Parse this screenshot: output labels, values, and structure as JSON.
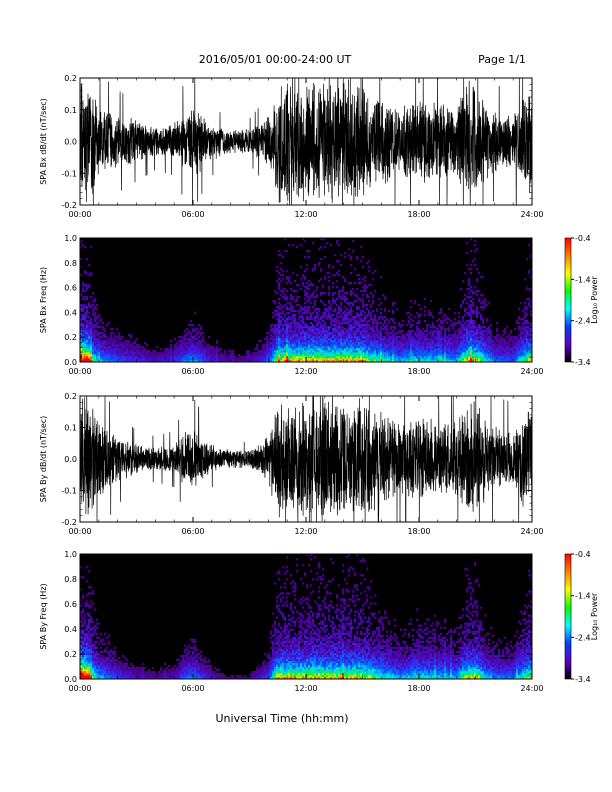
{
  "header": {
    "date_range": "2016/05/01   00:00-24:00 UT",
    "page": "Page 1/1"
  },
  "footer": {
    "x_axis_title": "Universal Time (hh:mm)"
  },
  "colorbar": {
    "label": "Log₁₀ Power",
    "ticks": [
      "-0.4",
      "-1.4",
      "-2.4",
      "-3.4"
    ],
    "colors": [
      "#ff0000",
      "#ff8000",
      "#ffff00",
      "#00ff00",
      "#00ffff",
      "#0040ff",
      "#6000c0",
      "#000000"
    ]
  },
  "chart_data": [
    {
      "type": "line",
      "id": "bx-waveform",
      "ylabel": "SPA Bx dB/dt (nT/sec)",
      "ylim": [
        -0.2,
        0.2
      ],
      "yticks": [
        "0.2",
        "0.1",
        "0.0",
        "-0.1",
        "-0.2"
      ],
      "xlim": [
        0,
        24
      ],
      "xticks": [
        "00:00",
        "06:00",
        "12:00",
        "18:00",
        "24:00"
      ],
      "envelope_hours": [
        0,
        0.5,
        1,
        2,
        3,
        4,
        5,
        5.5,
        6,
        6.5,
        7,
        8,
        9,
        10,
        10.5,
        11,
        12,
        13,
        14,
        15,
        16,
        17,
        18,
        19,
        20,
        20.5,
        21,
        21.5,
        22,
        23,
        24
      ],
      "envelope_amplitude": [
        0.21,
        0.21,
        0.12,
        0.09,
        0.07,
        0.05,
        0.06,
        0.1,
        0.12,
        0.09,
        0.06,
        0.04,
        0.04,
        0.08,
        0.2,
        0.21,
        0.21,
        0.21,
        0.21,
        0.21,
        0.15,
        0.12,
        0.14,
        0.13,
        0.12,
        0.2,
        0.21,
        0.15,
        0.1,
        0.09,
        0.21
      ]
    },
    {
      "type": "heatmap",
      "id": "bx-spectrogram",
      "ylabel": "SPA Bx Freq (Hz)",
      "ylim": [
        0,
        1
      ],
      "yticks": [
        "1.0",
        "0.8",
        "0.6",
        "0.4",
        "0.2",
        "0.0"
      ],
      "xlim": [
        0,
        24
      ],
      "xticks": [
        "00:00",
        "06:00",
        "12:00",
        "18:00",
        "24:00"
      ],
      "zlim": [
        -3.4,
        -0.4
      ]
    },
    {
      "type": "line",
      "id": "by-waveform",
      "ylabel": "SPA By dB/dt (nT/sec)",
      "ylim": [
        -0.2,
        0.2
      ],
      "yticks": [
        "0.2",
        "0.1",
        "0.0",
        "-0.1",
        "-0.2"
      ],
      "xlim": [
        0,
        24
      ],
      "xticks": [
        "00:00",
        "06:00",
        "12:00",
        "18:00",
        "24:00"
      ],
      "envelope_hours": [
        0,
        0.5,
        1,
        2,
        3,
        4,
        5,
        5.5,
        6,
        6.5,
        7,
        8,
        9,
        10,
        10.5,
        11,
        12,
        13,
        14,
        15,
        16,
        17,
        18,
        19,
        20,
        20.5,
        21,
        21.5,
        22,
        23,
        24
      ],
      "envelope_amplitude": [
        0.21,
        0.21,
        0.13,
        0.08,
        0.05,
        0.04,
        0.05,
        0.09,
        0.11,
        0.08,
        0.05,
        0.03,
        0.03,
        0.08,
        0.21,
        0.21,
        0.21,
        0.21,
        0.21,
        0.21,
        0.16,
        0.12,
        0.15,
        0.13,
        0.12,
        0.2,
        0.21,
        0.14,
        0.11,
        0.1,
        0.21
      ]
    },
    {
      "type": "heatmap",
      "id": "by-spectrogram",
      "ylabel": "SPA By Freq (Hz)",
      "ylim": [
        0,
        1
      ],
      "yticks": [
        "1.0",
        "0.8",
        "0.6",
        "0.4",
        "0.2",
        "0.0"
      ],
      "xlim": [
        0,
        24
      ],
      "xticks": [
        "00:00",
        "06:00",
        "12:00",
        "18:00",
        "24:00"
      ],
      "zlim": [
        -3.4,
        -0.4
      ]
    }
  ]
}
